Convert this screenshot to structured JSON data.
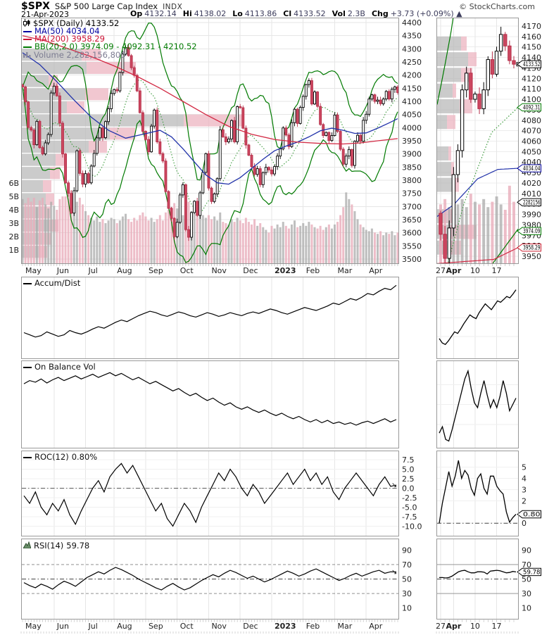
{
  "header": {
    "symbol": "$SPX",
    "title": "S&P 500 Large Cap Index",
    "exchange": "INDX",
    "credit": "© StockCharts.com",
    "date": "21-Apr-2023",
    "quote": [
      {
        "label": "Op",
        "value": "4132.14"
      },
      {
        "label": "Hi",
        "value": "4138.02"
      },
      {
        "label": "Lo",
        "value": "4113.86"
      },
      {
        "label": "Cl",
        "value": "4133.52"
      },
      {
        "label": "Vol",
        "value": "2.3B"
      },
      {
        "label": "Chg",
        "value": "+3.73 (+0.09%) ▲"
      }
    ]
  },
  "legend": {
    "items": [
      {
        "icon": "candlestick",
        "text": "$SPX (Daily) 4133.52",
        "color": "#000000"
      },
      {
        "swatch": true,
        "text": "MA(50) 4034.04",
        "color": "#0000a0"
      },
      {
        "swatch": true,
        "text": "MA(200) 3958.29",
        "color": "#cc1133"
      },
      {
        "swatch": true,
        "text": "BB(20,2.0) 3974.09 - 4092.31 - 4210.52",
        "color": "#007a00"
      },
      {
        "icon": "volume-bars",
        "text": "Volume 2,282,156,800",
        "color": "#7d7d92"
      }
    ]
  },
  "colors": {
    "up": "#000000",
    "up_fill": "#ffffff",
    "down_stroke": "#b6304a",
    "down_fill": "#cc4760",
    "vol_up": "rgba(170,170,170,0.75)",
    "vol_down": "rgba(232,172,186,0.8)",
    "vbp_gray": "rgba(186,186,186,0.75)",
    "vbp_pink": "rgba(236,180,192,0.75)",
    "ma50": "#2233aa",
    "ma200": "#d22a44",
    "bb": "#007a00",
    "bb_mid": "#3a9a3a",
    "grid": "#e6e6e6",
    "border": "#999999",
    "axis_text": "#222222",
    "indicator": "#000000"
  },
  "chart_data": [
    {
      "id": "main-price",
      "type": "candlestick",
      "title": "$SPX (Daily)",
      "last": 4133.52,
      "x_labels": [
        "May",
        "Jun",
        "Jul",
        "Aug",
        "Sep",
        "Oct",
        "Nov",
        "Dec",
        "2023",
        "Feb",
        "Mar",
        "Apr"
      ],
      "x_label_bold": "2023",
      "month_start_idx": [
        0,
        11,
        22,
        32,
        43,
        54,
        65,
        76,
        87,
        98,
        109,
        120
      ],
      "y_range": [
        3500,
        4400
      ],
      "y_step": 50,
      "vol_axis_B": [
        1,
        2,
        3,
        4,
        5,
        6
      ],
      "closes": [
        4155,
        4098,
        4001,
        3991,
        3935,
        4024,
        3924,
        3900,
        3942,
        3974,
        4132,
        4158,
        4121,
        4017,
        3900,
        3790,
        3750,
        3675,
        3760,
        3912,
        3826,
        3785,
        3825,
        3790,
        3854,
        3902,
        3961,
        3999,
        3962,
        4023,
        4072,
        4130,
        4145,
        4140,
        4210,
        4280,
        4305,
        4274,
        4228,
        4199,
        4140,
        4057,
        3986,
        3955,
        3908,
        4006,
        4067,
        3946,
        3901,
        3873,
        3757,
        3693,
        3655,
        3585,
        3640,
        3744,
        3783,
        3612,
        3583,
        3677,
        3720,
        3666,
        3752,
        3830,
        3901,
        3770,
        3719,
        3748,
        3806,
        3992,
        3965,
        3946,
        3957,
        4027,
        3946,
        4080,
        4076,
        3998,
        3934,
        3895,
        3852,
        3822,
        3844,
        3783,
        3829,
        3849,
        3839,
        3824,
        3852,
        3892,
        3919,
        3999,
        3972,
        3928,
        4019,
        4070,
        4016,
        4077,
        4119,
        4164,
        4179,
        4090,
        4136,
        4081,
        4012,
        3970,
        3982,
        3951,
        3970,
        4048,
        3986,
        3918,
        3861,
        3892,
        3917,
        3856,
        3948,
        3971,
        3948,
        4028,
        4051,
        4109,
        4125,
        4100,
        4105,
        4091,
        4109,
        4138,
        4109,
        4146,
        4155,
        4133.52
      ],
      "volumes_B": [
        4.8,
        4.5,
        4.9,
        4.6,
        4.9,
        4.2,
        4.7,
        4.9,
        4.4,
        4.1,
        4.6,
        4.3,
        4.0,
        4.8,
        5.0,
        5.0,
        5.2,
        5.4,
        5.2,
        4.6,
        4.9,
        4.4,
        3.9,
        3.6,
        3.4,
        3.2,
        3.5,
        3.1,
        3.3,
        3.0,
        3.2,
        3.4,
        3.3,
        3.0,
        3.2,
        3.5,
        3.7,
        3.3,
        3.1,
        3.4,
        3.2,
        3.6,
        3.8,
        3.5,
        3.2,
        3.4,
        3.1,
        3.3,
        3.6,
        3.2,
        3.8,
        4.0,
        4.2,
        4.5,
        4.1,
        3.8,
        3.6,
        4.3,
        4.6,
        3.9,
        3.7,
        3.5,
        3.8,
        3.6,
        3.4,
        3.6,
        3.3,
        3.5,
        3.2,
        3.8,
        3.1,
        3.0,
        2.9,
        3.3,
        3.1,
        3.4,
        3.2,
        3.0,
        3.4,
        3.1,
        2.9,
        3.3,
        2.8,
        3.0,
        2.7,
        2.5,
        2.3,
        2.8,
        2.6,
        2.9,
        2.7,
        3.1,
        2.8,
        2.6,
        2.9,
        3.2,
        2.7,
        2.8,
        3.0,
        2.8,
        3.1,
        2.9,
        2.7,
        2.6,
        2.8,
        2.5,
        2.7,
        2.9,
        2.6,
        2.9,
        3.1,
        3.6,
        4.2,
        5.3,
        4.8,
        4.4,
        3.9,
        3.3,
        2.9,
        2.7,
        2.5,
        2.4,
        2.6,
        2.3,
        2.2,
        2.4,
        2.1,
        2.3,
        2.2,
        2.4,
        2.1,
        2.3
      ],
      "ma50_keys": [
        [
          0,
          4285
        ],
        [
          6,
          4240
        ],
        [
          12,
          4175
        ],
        [
          18,
          4105
        ],
        [
          24,
          4040
        ],
        [
          30,
          3990
        ],
        [
          36,
          3960
        ],
        [
          42,
          3975
        ],
        [
          48,
          3990
        ],
        [
          52,
          3965
        ],
        [
          56,
          3920
        ],
        [
          60,
          3870
        ],
        [
          64,
          3820
        ],
        [
          68,
          3790
        ],
        [
          72,
          3785
        ],
        [
          76,
          3810
        ],
        [
          80,
          3845
        ],
        [
          84,
          3880
        ],
        [
          88,
          3912
        ],
        [
          92,
          3930
        ],
        [
          96,
          3945
        ],
        [
          100,
          3965
        ],
        [
          104,
          3988
        ],
        [
          108,
          3998
        ],
        [
          112,
          3990
        ],
        [
          116,
          3978
        ],
        [
          120,
          3980
        ],
        [
          124,
          3998
        ],
        [
          128,
          4018
        ],
        [
          131,
          4034.04
        ]
      ],
      "ma200_keys": [
        [
          0,
          4350
        ],
        [
          8,
          4330
        ],
        [
          16,
          4300
        ],
        [
          24,
          4270
        ],
        [
          32,
          4235
        ],
        [
          40,
          4195
        ],
        [
          48,
          4150
        ],
        [
          56,
          4100
        ],
        [
          64,
          4050
        ],
        [
          72,
          4005
        ],
        [
          80,
          3975
        ],
        [
          88,
          3955
        ],
        [
          96,
          3945
        ],
        [
          104,
          3940
        ],
        [
          112,
          3938
        ],
        [
          118,
          3942
        ],
        [
          124,
          3950
        ],
        [
          131,
          3958.29
        ]
      ],
      "bb": {
        "window": 12,
        "mult": 2
      },
      "vbp": [
        [
          4300,
          85,
          27
        ],
        [
          4250,
          92,
          70
        ],
        [
          4200,
          38,
          13
        ],
        [
          4150,
          90,
          33
        ],
        [
          4100,
          64,
          25
        ],
        [
          4050,
          230,
          85
        ],
        [
          4000,
          125,
          36
        ],
        [
          3950,
          95,
          26
        ],
        [
          3900,
          48,
          16
        ],
        [
          3850,
          40,
          14
        ],
        [
          3800,
          30,
          12
        ],
        [
          3750,
          34,
          12
        ],
        [
          3700,
          30,
          11
        ],
        [
          3650,
          38,
          14
        ],
        [
          3600,
          30,
          12
        ],
        [
          3550,
          26,
          10
        ]
      ]
    },
    {
      "id": "mini-price",
      "type": "candlestick",
      "x_labels": [
        {
          "t": "27",
          "i": 0
        },
        {
          "t": "Apr",
          "i": 3,
          "b": true
        },
        {
          "t": "10",
          "i": 8
        },
        {
          "t": "17",
          "i": 13
        }
      ],
      "y_range": [
        3950,
        4170
      ],
      "y_step": 10,
      "closes": [
        3971,
        3948,
        3977,
        4028,
        4051,
        4109,
        4125,
        4100,
        4105,
        4091,
        4109,
        4138,
        4124,
        4146,
        4162,
        4151,
        4137,
        4133.52
      ],
      "volumes_B": [
        2.2,
        2.4,
        2.1,
        2.5,
        2.2,
        2.4,
        2.1,
        2.6,
        2.3,
        2.2,
        2.4,
        2.1,
        2.3,
        2.5,
        2.2,
        2.0,
        2.9,
        2.3
      ],
      "callouts": [
        {
          "text": "4133.52",
          "color": "#000000",
          "price": 4133.52
        },
        {
          "text": "4092.31",
          "color": "#007a00",
          "price": 4092.31
        },
        {
          "text": "4034.04",
          "color": "#000099",
          "price": 4034.04
        },
        {
          "text": "2282156",
          "color": "#000000",
          "volume_B": 2.282
        },
        {
          "text": "3974.09",
          "color": "#007a00",
          "price": 3974.09
        },
        {
          "text": "3958.29",
          "color": "#cc2233",
          "price": 3958.29
        }
      ],
      "bb_mid_keys": [
        [
          0,
          3905
        ],
        [
          0.33,
          4000
        ],
        [
          0.67,
          4068
        ],
        [
          1,
          4092.31
        ]
      ],
      "bb_up_keys": [
        [
          0,
          4095
        ],
        [
          0.09,
          4130
        ],
        [
          0.18,
          4168
        ],
        [
          0.26,
          4212
        ]
      ],
      "bb_lo_keys": [
        [
          0.6,
          3934
        ],
        [
          1,
          3976
        ]
      ],
      "ma50_keys": [
        [
          0,
          3988
        ],
        [
          0.2,
          3999
        ],
        [
          0.5,
          4024
        ],
        [
          0.75,
          4033
        ],
        [
          1,
          4034.04
        ]
      ],
      "ma200_keys": [
        [
          0,
          3943
        ],
        [
          0.7,
          3947
        ],
        [
          1,
          3958.29
        ]
      ],
      "vbp": [
        [
          4160,
          34,
          8
        ],
        [
          4145,
          44,
          12
        ],
        [
          4130,
          34,
          16
        ],
        [
          4115,
          22,
          5
        ],
        [
          4100,
          32,
          18
        ],
        [
          4085,
          14,
          12
        ],
        [
          4055,
          16,
          4
        ],
        [
          4040,
          20,
          4
        ],
        [
          4025,
          26,
          5
        ],
        [
          3995,
          14,
          8
        ],
        [
          3980,
          18,
          38
        ],
        [
          3965,
          12,
          22
        ]
      ],
      "last_marker": 4133.52
    },
    {
      "id": "accum-dist",
      "type": "line",
      "label": "Accum/Dist",
      "values": [
        30,
        27,
        24,
        26,
        31,
        28,
        25,
        27,
        33,
        30,
        28,
        31,
        35,
        38,
        36,
        40,
        44,
        47,
        45,
        49,
        53,
        56,
        59,
        57,
        54,
        52,
        55,
        58,
        56,
        53,
        51,
        54,
        57,
        55,
        52,
        54,
        57,
        55,
        53,
        56,
        58,
        56,
        59,
        62,
        60,
        57,
        55,
        58,
        61,
        64,
        62,
        60,
        63,
        66,
        70,
        68,
        72,
        76,
        74,
        78,
        83,
        81,
        86,
        90,
        88,
        94
      ]
    },
    {
      "id": "obv",
      "type": "line",
      "label": "On Balance Vol",
      "values": [
        76,
        80,
        78,
        82,
        77,
        81,
        84,
        80,
        83,
        86,
        82,
        85,
        88,
        84,
        87,
        90,
        86,
        89,
        85,
        81,
        84,
        80,
        76,
        79,
        75,
        71,
        67,
        70,
        65,
        61,
        64,
        59,
        55,
        58,
        53,
        49,
        52,
        47,
        44,
        47,
        43,
        40,
        43,
        39,
        36,
        39,
        35,
        32,
        35,
        31,
        28,
        31,
        27,
        30,
        26,
        28,
        25,
        27,
        24,
        27,
        29,
        26,
        29,
        32,
        28,
        31
      ]
    },
    {
      "id": "roc",
      "type": "line",
      "label": "ROC(12)",
      "last": "0.80%",
      "last_value": 0.8,
      "y_ticks": [
        "7.5",
        "5.0",
        "2.5",
        "0.0",
        "-2.5",
        "-5.0",
        "-7.5",
        "-10.0"
      ],
      "y_lim": [
        -11.6,
        8.8
      ],
      "values": [
        -2,
        -4,
        -1,
        -5,
        -7,
        -4,
        -6,
        -3,
        -7,
        -9.5,
        -6,
        -3,
        0,
        2,
        -1,
        3,
        5,
        6.5,
        4,
        6,
        3,
        0,
        -3,
        -6,
        -4,
        -8,
        -10,
        -7,
        -4,
        -6,
        -9,
        -5,
        -2,
        1,
        4,
        2,
        5,
        3,
        0,
        -2,
        1,
        -1,
        -4,
        -2,
        0,
        2,
        4,
        1,
        3,
        5,
        2,
        4,
        1,
        3,
        -1,
        -3,
        0,
        2,
        4,
        2,
        0,
        -2,
        1,
        3,
        0.5,
        0.8
      ]
    },
    {
      "id": "rsi",
      "type": "line",
      "label": "RSI(14)",
      "last": "59.78",
      "last_value": 59.78,
      "y_ticks": [
        90,
        70,
        50,
        30,
        10
      ],
      "ref_lines": [
        70,
        50,
        30
      ],
      "y_lim": [
        0,
        100
      ],
      "values": [
        45,
        41,
        38,
        43,
        40,
        36,
        42,
        47,
        44,
        40,
        46,
        52,
        56,
        60,
        57,
        62,
        66,
        63,
        59,
        55,
        50,
        46,
        42,
        38,
        35,
        40,
        44,
        39,
        35,
        38,
        43,
        48,
        52,
        56,
        53,
        58,
        62,
        59,
        55,
        51,
        54,
        50,
        46,
        49,
        53,
        57,
        61,
        58,
        54,
        57,
        61,
        64,
        60,
        56,
        52,
        48,
        51,
        55,
        58,
        54,
        57,
        60,
        62,
        58,
        60,
        59.78
      ]
    },
    {
      "id": "accum-dist-mini",
      "type": "line",
      "values": [
        22,
        16,
        14,
        19,
        25,
        31,
        29,
        35,
        42,
        48,
        54,
        51,
        49,
        57,
        63,
        69,
        65,
        61,
        67,
        73,
        71,
        75,
        79,
        77,
        82,
        88
      ]
    },
    {
      "id": "obv-mini",
      "type": "line",
      "values": [
        14,
        22,
        6,
        4,
        18,
        34,
        50,
        66,
        82,
        92,
        70,
        52,
        46,
        64,
        80,
        62,
        46,
        56,
        46,
        60,
        80,
        64,
        42,
        50,
        58
      ]
    },
    {
      "id": "roc-mini",
      "type": "line",
      "y_ticks": [
        5,
        4,
        3,
        2,
        0
      ],
      "y_lim": [
        -0.8,
        6.1
      ],
      "callout": {
        "text": "0.80",
        "value": 0.8
      },
      "values": [
        0,
        1.8,
        3.2,
        4.6,
        3.3,
        4.2,
        5.6,
        4.0,
        4.7,
        4.3,
        3.1,
        2.5,
        4.0,
        4.4,
        3.1,
        2.6,
        4.2,
        4.2,
        3.3,
        2.9,
        2.6,
        1.0,
        0.1,
        0.5,
        0.8
      ]
    },
    {
      "id": "rsi-mini",
      "type": "line",
      "y_ticks": [
        90,
        70,
        50,
        30,
        10
      ],
      "ref_lines": [
        70,
        50,
        30
      ],
      "y_lim": [
        0,
        100
      ],
      "callout": {
        "text": "59.78",
        "value": 59.78
      },
      "values": [
        52,
        52,
        51.5,
        52,
        54,
        57,
        60,
        61.5,
        62,
        60,
        58.5,
        58.5,
        60,
        60,
        59.5,
        57,
        61,
        61.5,
        62,
        61.5,
        60,
        58.5,
        59,
        60.5,
        59.78
      ]
    }
  ]
}
